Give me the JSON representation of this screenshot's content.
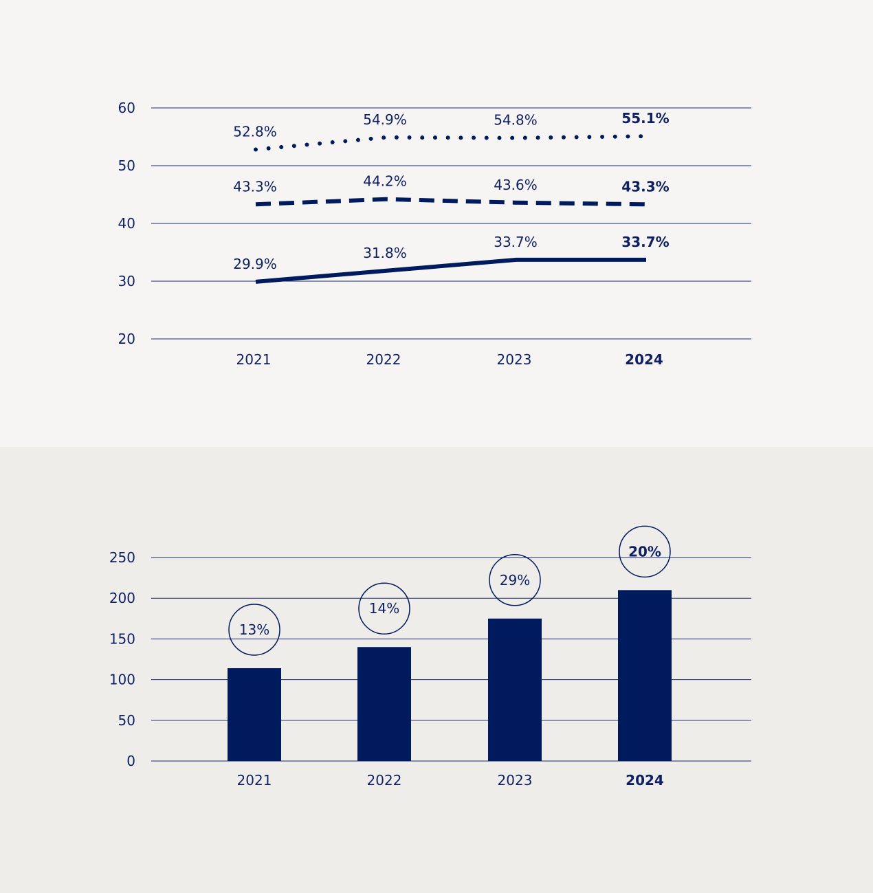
{
  "colors": {
    "accent": "#001a5e",
    "text": "#0e1f63",
    "background_top": "#f6f5f3",
    "background_bottom": "#efedea"
  },
  "chart_data": [
    {
      "type": "line",
      "categories": [
        "2021",
        "2022",
        "2023",
        "2024"
      ],
      "highlight_category": "2024",
      "ylim": [
        20,
        60
      ],
      "yticks": [
        "60",
        "50",
        "40",
        "30",
        "20"
      ],
      "grid": true,
      "series": [
        {
          "style": "dotted",
          "values": [
            52.8,
            54.9,
            54.8,
            55.1
          ],
          "labels": [
            "52.8%",
            "54.9%",
            "54.8%",
            "55.1%"
          ]
        },
        {
          "style": "dashed",
          "values": [
            43.3,
            44.2,
            43.6,
            43.3
          ],
          "labels": [
            "43.3%",
            "44.2%",
            "43.6%",
            "43.3%"
          ]
        },
        {
          "style": "solid",
          "values": [
            29.9,
            31.8,
            33.7,
            33.7
          ],
          "labels": [
            "29.9%",
            "31.8%",
            "33.7%",
            "33.7%"
          ]
        }
      ]
    },
    {
      "type": "bar",
      "categories": [
        "2021",
        "2022",
        "2023",
        "2024"
      ],
      "highlight_category": "2024",
      "values": [
        114,
        140,
        175,
        210
      ],
      "bubble_labels": [
        "13%",
        "14%",
        "29%",
        "20%"
      ],
      "ylim": [
        0,
        250
      ],
      "yticks": [
        "250",
        "200",
        "150",
        "100",
        "50",
        "0"
      ],
      "grid": true
    }
  ]
}
